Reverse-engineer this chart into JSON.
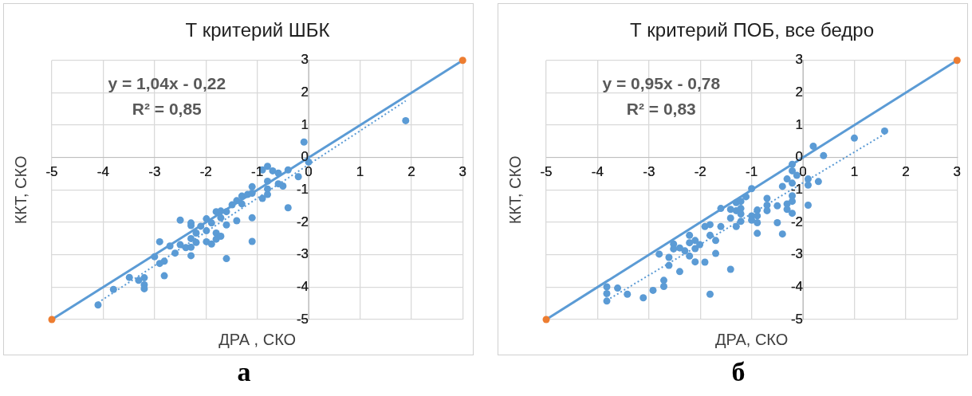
{
  "chart_data": [
    {
      "type": "scatter",
      "title": "Т критерий ШБК",
      "xlabel": "ДРА , СКО",
      "ylabel": "ККТ, СКО",
      "xlim": [
        -5,
        3
      ],
      "ylim": [
        -5,
        3
      ],
      "xticks": [
        -5,
        -4,
        -3,
        -2,
        -1,
        0,
        1,
        2,
        3
      ],
      "yticks": [
        -5,
        -4,
        -3,
        -2,
        -1,
        0,
        1,
        2,
        3
      ],
      "grid": true,
      "marker": "circle",
      "annotations": [
        "y = 1,04x - 0,22",
        "R² = 0,85",
        "а"
      ],
      "series": [
        {
          "color": "#5b9bd5",
          "x": [
            -4.1,
            -3.8,
            -3.49,
            -3.31,
            -3.2,
            -3.2,
            -3.2,
            -2.81,
            -2.9,
            -2.81,
            -3.0,
            -2.9,
            -2.7,
            -2.6,
            -2.5,
            -2.5,
            -2.39,
            -2.29,
            -2.29,
            -2.29,
            -2.29,
            -2.29,
            -2.19,
            -2.19,
            -2.1,
            -1.99,
            -1.99,
            -1.99,
            -1.89,
            -1.89,
            -1.8,
            -1.8,
            -1.8,
            -1.71,
            -1.71,
            -1.71,
            -1.6,
            -1.6,
            -1.6,
            -1.49,
            -1.4,
            -1.4,
            -1.3,
            -1.3,
            -1.19,
            -1.1,
            -1.1,
            -1.1,
            -1.1,
            -0.9,
            -0.9,
            -0.8,
            -0.8,
            -0.8,
            -0.8,
            -0.7,
            -0.59,
            -0.59,
            -0.5,
            -0.4,
            -0.4,
            -0.2,
            -0.09,
            0.0,
            1.89
          ],
          "values": [
            -4.55,
            -4.07,
            -3.7,
            -3.79,
            -3.71,
            -3.93,
            -4.05,
            -3.65,
            -3.27,
            -3.2,
            -3.06,
            -2.6,
            -2.73,
            -2.95,
            -1.93,
            -2.69,
            -2.78,
            -3.03,
            -2.77,
            -2.5,
            -2.1,
            -2.02,
            -2.33,
            -2.62,
            -2.12,
            -1.89,
            -2.26,
            -2.6,
            -2.02,
            -2.67,
            -1.67,
            -2.33,
            -2.52,
            -1.65,
            -2.43,
            -1.86,
            -1.67,
            -2.08,
            -3.12,
            -1.46,
            -1.95,
            -1.33,
            -1.19,
            -1.43,
            -1.14,
            -0.9,
            -1.1,
            -1.86,
            -2.59,
            -0.38,
            -1.26,
            -0.27,
            -0.73,
            -0.97,
            -1.14,
            -0.41,
            -0.48,
            -0.81,
            -0.88,
            -0.38,
            -1.55,
            -0.59,
            0.48,
            -0.14,
            1.14
          ]
        },
        {
          "type": "line",
          "color": "#5b9bd5",
          "line_style": "solid",
          "marker": "none",
          "x": [
            -5,
            3
          ],
          "values": [
            -5,
            3
          ]
        },
        {
          "type": "scatter",
          "color": "#ed7d31",
          "x": [
            -5,
            3
          ],
          "values": [
            -5,
            3
          ]
        },
        {
          "type": "line",
          "color": "#5b9bd5",
          "line_style": "dotted",
          "marker": "none",
          "x": [
            -4.1,
            1.89
          ],
          "values": [
            -4.48,
            1.75
          ]
        }
      ]
    },
    {
      "type": "scatter",
      "title": "Т критерий ПОБ, все бедро",
      "xlabel": "ДРА, СКО",
      "ylabel": "ККТ, СКО",
      "xlim": [
        -5,
        3
      ],
      "ylim": [
        -5,
        3
      ],
      "xticks": [
        -5,
        -4,
        -3,
        -2,
        -1,
        0,
        1,
        2,
        3
      ],
      "yticks": [
        -5,
        -4,
        -3,
        -2,
        -1,
        0,
        1,
        2,
        3
      ],
      "grid": true,
      "marker": "circle",
      "annotations": [
        "y = 0,95x - 0,78",
        "R² = 0,83",
        "б"
      ],
      "series": [
        {
          "color": "#5b9bd5",
          "x": [
            -3.82,
            -3.82,
            -3.82,
            -3.61,
            -3.42,
            -3.11,
            -2.92,
            -2.8,
            -2.71,
            -2.71,
            -2.61,
            -2.61,
            -2.52,
            -2.52,
            -2.4,
            -2.4,
            -2.3,
            -2.21,
            -2.21,
            -2.21,
            -2.1,
            -2.1,
            -2.1,
            -2.01,
            -1.91,
            -1.91,
            -1.81,
            -1.81,
            -1.81,
            -1.7,
            -1.7,
            -1.6,
            -1.6,
            -1.41,
            -1.41,
            -1.41,
            -1.3,
            -1.3,
            -1.3,
            -1.21,
            -1.21,
            -1.21,
            -1.21,
            -1.11,
            -1.0,
            -1.0,
            -1.0,
            -0.89,
            -0.89,
            -0.89,
            -0.89,
            -0.7,
            -0.7,
            -0.7,
            -0.5,
            -0.5,
            -0.4,
            -0.4,
            -0.31,
            -0.31,
            -0.31,
            -0.21,
            -0.21,
            -0.21,
            -0.21,
            -0.21,
            -0.21,
            -0.12,
            0.1,
            0.1,
            0.1,
            0.2,
            0.3,
            0.4,
            1.0,
            1.59
          ],
          "values": [
            -3.99,
            -4.2,
            -4.43,
            -4.03,
            -4.22,
            -4.33,
            -4.1,
            -2.98,
            -3.79,
            -3.98,
            -3.08,
            -3.33,
            -2.67,
            -2.82,
            -2.79,
            -3.52,
            -2.88,
            -2.4,
            -2.63,
            -3.04,
            -2.56,
            -2.81,
            -3.22,
            -2.69,
            -2.13,
            -3.23,
            -2.07,
            -2.4,
            -4.22,
            -2.56,
            -2.96,
            -1.57,
            -2.13,
            -1.6,
            -1.87,
            -3.45,
            -1.39,
            -2.13,
            -1.64,
            -1.35,
            -1.57,
            -1.74,
            -1.97,
            -1.21,
            -0.96,
            -1.8,
            -1.93,
            -1.62,
            -1.8,
            -2.01,
            -2.34,
            -1.26,
            -1.47,
            -1.64,
            -1.49,
            -2.01,
            -0.89,
            -2.36,
            -0.66,
            -1.43,
            -1.6,
            -0.21,
            -0.41,
            -0.79,
            -1.18,
            -1.35,
            -1.72,
            -0.55,
            -0.66,
            -0.85,
            -1.47,
            0.35,
            -0.74,
            0.06,
            0.6,
            0.82
          ]
        },
        {
          "type": "line",
          "color": "#5b9bd5",
          "line_style": "solid",
          "marker": "none",
          "x": [
            -5,
            3
          ],
          "values": [
            -5,
            3
          ]
        },
        {
          "type": "scatter",
          "color": "#ed7d31",
          "x": [
            -5,
            3
          ],
          "values": [
            -5,
            3
          ]
        },
        {
          "type": "line",
          "color": "#5b9bd5",
          "line_style": "dotted",
          "marker": "none",
          "x": [
            -3.82,
            1.59
          ],
          "values": [
            -4.41,
            0.73
          ]
        }
      ]
    }
  ]
}
